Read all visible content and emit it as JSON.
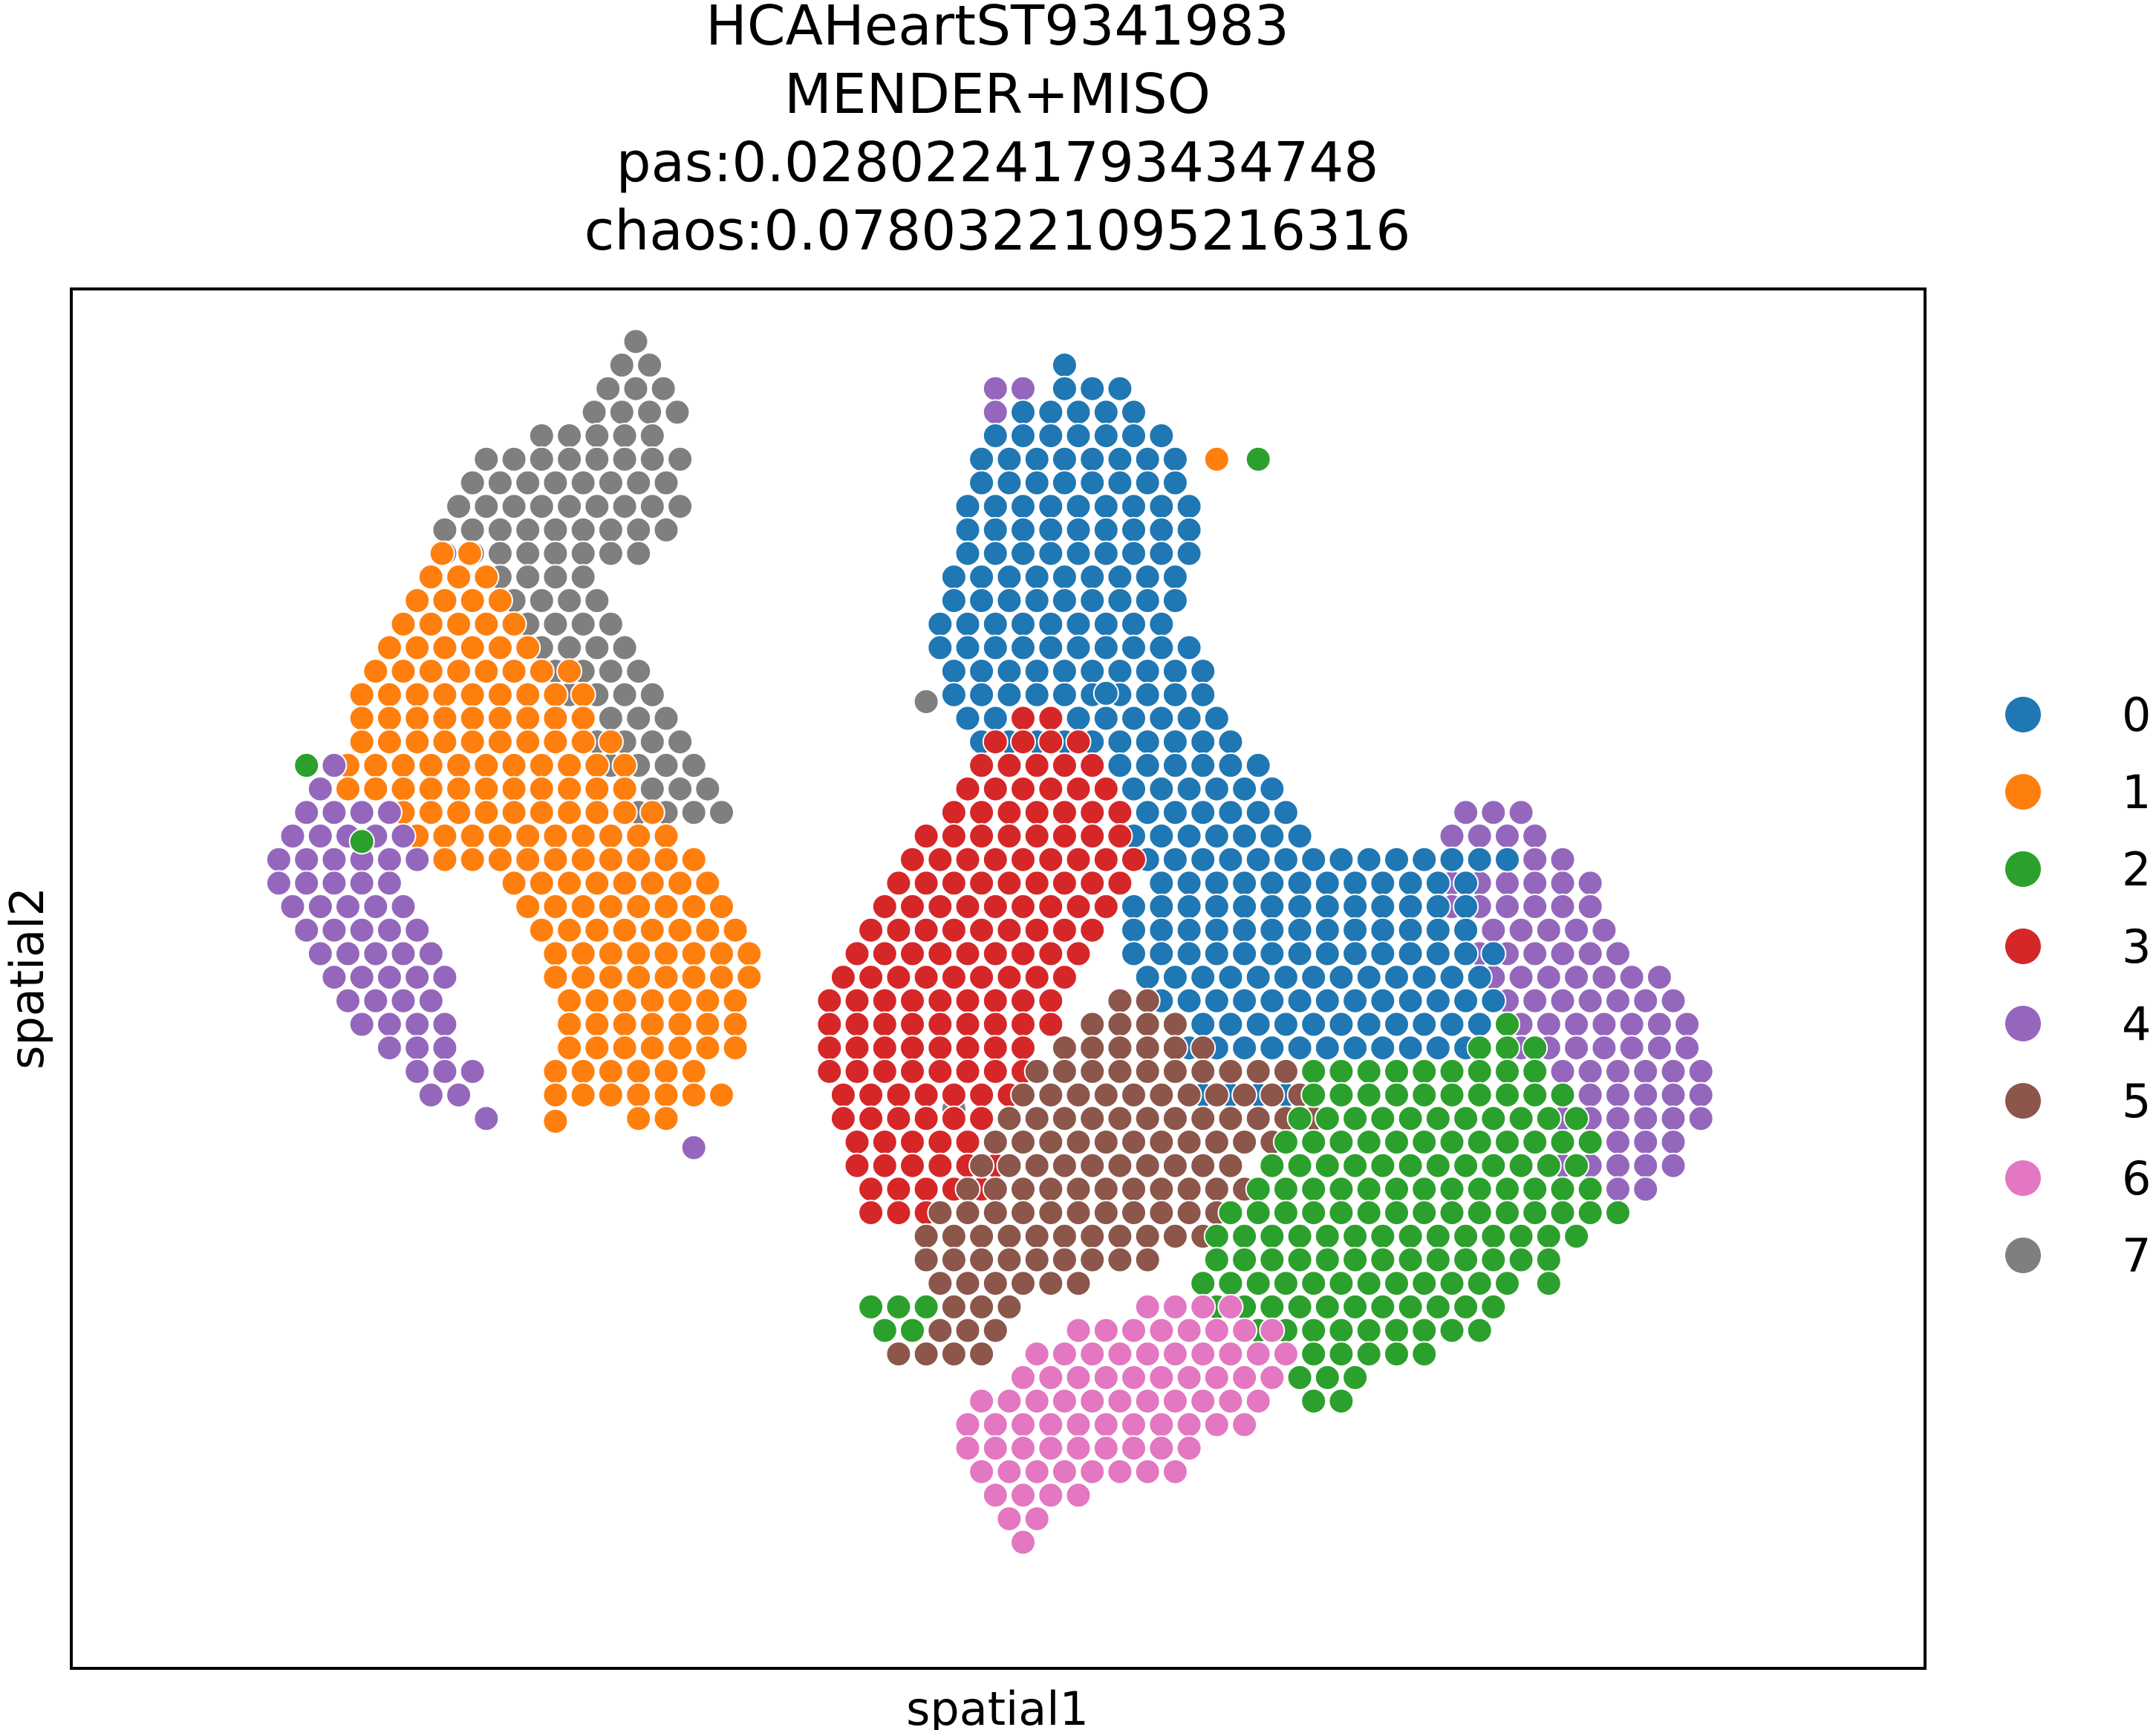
{
  "chart_data": {
    "type": "scatter",
    "title_lines": [
      "HCAHeartST9341983",
      "MENDER+MISO",
      "pas:0.02802241793434748",
      "chaos:0.07803221095216316"
    ],
    "xlabel": "spatial1",
    "ylabel": "spatial2",
    "xlim": [
      0,
      1340
    ],
    "ylim": [
      0,
      996
    ],
    "grid": false,
    "ticks": false,
    "legend_position": "right",
    "legend": [
      {
        "label": "0",
        "color": "#1f77b4"
      },
      {
        "label": "1",
        "color": "#ff7f0e"
      },
      {
        "label": "2",
        "color": "#2ca02c"
      },
      {
        "label": "3",
        "color": "#d62728"
      },
      {
        "label": "4",
        "color": "#9467bd"
      },
      {
        "label": "5",
        "color": "#8c564b"
      },
      {
        "label": "6",
        "color": "#e377c2"
      },
      {
        "label": "7",
        "color": "#7f7f7f"
      }
    ],
    "regions": [
      {
        "cluster": "7",
        "rows": [
          [
            958,
            408,
            408
          ],
          [
            941,
            398,
            418
          ],
          [
            924,
            388,
            428
          ],
          [
            907,
            378,
            438
          ],
          [
            890,
            340,
            438
          ],
          [
            873,
            300,
            448
          ],
          [
            856,
            290,
            448
          ],
          [
            839,
            280,
            448
          ],
          [
            822,
            270,
            438
          ],
          [
            805,
            270,
            428
          ],
          [
            788,
            310,
            380
          ],
          [
            771,
            320,
            380
          ],
          [
            754,
            330,
            390
          ],
          [
            737,
            340,
            400
          ],
          [
            720,
            350,
            410
          ],
          [
            703,
            360,
            420
          ],
          [
            686,
            370,
            430
          ],
          [
            669,
            380,
            440
          ],
          [
            652,
            390,
            450
          ],
          [
            635,
            400,
            460
          ],
          [
            618,
            410,
            470
          ]
        ]
      },
      {
        "cluster": "7",
        "rows": [
          [
            404,
            638,
            638
          ]
        ]
      },
      {
        "cluster": "1",
        "rows": [
          [
            805,
            268,
            298
          ],
          [
            788,
            260,
            310
          ],
          [
            771,
            250,
            320
          ],
          [
            754,
            240,
            330
          ],
          [
            737,
            230,
            340
          ],
          [
            720,
            220,
            360
          ],
          [
            703,
            210,
            370
          ],
          [
            686,
            210,
            380
          ],
          [
            669,
            210,
            390
          ],
          [
            652,
            200,
            400
          ],
          [
            635,
            200,
            410
          ],
          [
            618,
            240,
            420
          ],
          [
            601,
            250,
            440
          ],
          [
            584,
            250,
            460
          ],
          [
            567,
            320,
            470
          ],
          [
            550,
            330,
            480
          ],
          [
            533,
            340,
            490
          ],
          [
            516,
            350,
            490
          ],
          [
            499,
            350,
            490
          ],
          [
            482,
            360,
            490
          ],
          [
            465,
            360,
            490
          ],
          [
            448,
            360,
            490
          ],
          [
            431,
            350,
            460
          ],
          [
            414,
            350,
            470
          ],
          [
            397,
            410,
            440
          ]
        ]
      },
      {
        "cluster": "1",
        "rows": [
          [
            395,
            350,
            350
          ]
        ]
      },
      {
        "cluster": "4",
        "rows": [
          [
            652,
            190,
            190
          ],
          [
            635,
            180,
            190
          ],
          [
            618,
            170,
            240
          ],
          [
            601,
            160,
            250
          ],
          [
            584,
            150,
            250
          ],
          [
            567,
            150,
            240
          ],
          [
            550,
            160,
            250
          ],
          [
            533,
            170,
            250
          ],
          [
            516,
            180,
            260
          ],
          [
            499,
            190,
            270
          ],
          [
            482,
            200,
            270
          ],
          [
            465,
            210,
            280
          ],
          [
            448,
            230,
            280
          ],
          [
            431,
            250,
            290
          ],
          [
            414,
            260,
            290
          ],
          [
            397,
            300,
            300
          ]
        ]
      },
      {
        "cluster": "4",
        "rows": [
          [
            376,
            450,
            450
          ]
        ]
      },
      {
        "cluster": "4",
        "rows": [
          [
            924,
            668,
            698
          ],
          [
            907,
            668,
            678
          ]
        ]
      },
      {
        "cluster": "4",
        "rows": [
          [
            618,
            1008,
            1058
          ],
          [
            601,
            998,
            1068
          ],
          [
            584,
            998,
            1078
          ],
          [
            567,
            998,
            1098
          ],
          [
            550,
            998,
            1108
          ],
          [
            533,
            1008,
            1118
          ],
          [
            516,
            1018,
            1128
          ],
          [
            499,
            1028,
            1148
          ],
          [
            482,
            1038,
            1158
          ],
          [
            465,
            1048,
            1168
          ],
          [
            448,
            1048,
            1178
          ],
          [
            431,
            1078,
            1188
          ],
          [
            414,
            1078,
            1188
          ],
          [
            397,
            1078,
            1178
          ],
          [
            380,
            1078,
            1168
          ],
          [
            363,
            1078,
            1158
          ],
          [
            346,
            1098,
            1148
          ]
        ]
      },
      {
        "cluster": "0",
        "rows": [
          [
            941,
            718,
            718
          ],
          [
            924,
            718,
            768
          ],
          [
            907,
            688,
            778
          ],
          [
            890,
            668,
            788
          ],
          [
            873,
            658,
            798
          ],
          [
            856,
            658,
            808
          ],
          [
            839,
            648,
            818
          ],
          [
            822,
            648,
            818
          ],
          [
            805,
            648,
            818
          ],
          [
            788,
            638,
            798
          ],
          [
            771,
            638,
            798
          ],
          [
            754,
            628,
            798
          ],
          [
            737,
            628,
            808
          ],
          [
            720,
            638,
            818
          ],
          [
            703,
            638,
            828
          ],
          [
            686,
            648,
            838
          ],
          [
            669,
            658,
            838
          ],
          [
            652,
            738,
            868
          ],
          [
            635,
            748,
            868
          ],
          [
            618,
            758,
            888
          ],
          [
            601,
            768,
            898
          ],
          [
            584,
            778,
            1048
          ],
          [
            567,
            788,
            1018
          ],
          [
            550,
            768,
            1008
          ],
          [
            533,
            768,
            1018
          ],
          [
            516,
            768,
            1028
          ],
          [
            499,
            778,
            1028
          ],
          [
            482,
            788,
            1028
          ],
          [
            465,
            798,
            1018
          ],
          [
            448,
            808,
            1008
          ],
          [
            431,
            818,
            1008
          ],
          [
            414,
            818,
            888
          ]
        ]
      },
      {
        "cluster": "0",
        "rows": [
          [
            704,
            748,
            748
          ]
        ]
      },
      {
        "cluster": "1",
        "rows": [
          [
            873,
            828,
            828
          ]
        ]
      },
      {
        "cluster": "2",
        "rows": [
          [
            873,
            858,
            858
          ]
        ]
      },
      {
        "cluster": "7",
        "rows": [
          [
            698,
            618,
            618
          ]
        ]
      },
      {
        "cluster": "2",
        "rows": [
          [
            652,
            170,
            170
          ]
        ]
      },
      {
        "cluster": "2",
        "rows": [
          [
            597,
            210,
            210
          ]
        ]
      },
      {
        "cluster": "3",
        "rows": [
          [
            686,
            688,
            708
          ],
          [
            669,
            668,
            728
          ],
          [
            652,
            658,
            738
          ],
          [
            635,
            648,
            758
          ],
          [
            618,
            638,
            768
          ],
          [
            601,
            618,
            768
          ],
          [
            584,
            608,
            768
          ],
          [
            567,
            598,
            768
          ],
          [
            550,
            588,
            748
          ],
          [
            533,
            578,
            748
          ],
          [
            516,
            568,
            738
          ],
          [
            499,
            558,
            728
          ],
          [
            482,
            548,
            718
          ],
          [
            465,
            548,
            708
          ],
          [
            448,
            548,
            698
          ],
          [
            431,
            548,
            688
          ],
          [
            414,
            558,
            688
          ],
          [
            397,
            558,
            678
          ],
          [
            380,
            568,
            678
          ],
          [
            363,
            568,
            668
          ],
          [
            346,
            578,
            658
          ],
          [
            329,
            578,
            628
          ]
        ]
      },
      {
        "cluster": "5",
        "rows": [
          [
            482,
            758,
            788
          ],
          [
            465,
            738,
            808
          ],
          [
            448,
            718,
            818
          ],
          [
            431,
            698,
            888
          ],
          [
            414,
            688,
            898
          ],
          [
            397,
            678,
            898
          ],
          [
            380,
            668,
            868
          ],
          [
            363,
            658,
            848
          ],
          [
            346,
            648,
            848
          ],
          [
            329,
            628,
            838
          ],
          [
            312,
            618,
            818
          ],
          [
            295,
            618,
            788
          ],
          [
            278,
            628,
            728
          ],
          [
            261,
            618,
            688
          ],
          [
            244,
            608,
            668
          ],
          [
            227,
            598,
            658
          ]
        ]
      },
      {
        "cluster": "2",
        "rows": [
          [
            465,
            1038,
            1038
          ],
          [
            448,
            1018,
            1058
          ],
          [
            431,
            898,
            1068
          ],
          [
            414,
            898,
            1078
          ],
          [
            397,
            888,
            1088
          ],
          [
            380,
            878,
            1098
          ],
          [
            363,
            868,
            1098
          ],
          [
            346,
            858,
            1098
          ],
          [
            329,
            838,
            1088
          ],
          [
            312,
            828,
            1078
          ],
          [
            295,
            828,
            1068
          ],
          [
            278,
            818,
            1048
          ],
          [
            261,
            828,
            1038
          ],
          [
            244,
            858,
            1018
          ],
          [
            227,
            878,
            978
          ],
          [
            210,
            888,
            938
          ],
          [
            193,
            898,
            918
          ]
        ]
      },
      {
        "cluster": "2",
        "rows": [
          [
            329,
            1098,
            1118
          ],
          [
            312,
            1088,
            1098
          ]
        ]
      },
      {
        "cluster": "2",
        "rows": [
          [
            278,
            1068,
            1078
          ]
        ]
      },
      {
        "cluster": "2",
        "rows": [
          [
            261,
            578,
            618
          ],
          [
            244,
            588,
            608
          ]
        ]
      },
      {
        "cluster": "6",
        "rows": [
          [
            261,
            778,
            848
          ],
          [
            244,
            728,
            868
          ],
          [
            227,
            698,
            878
          ],
          [
            210,
            688,
            878
          ],
          [
            193,
            658,
            868
          ],
          [
            176,
            648,
            848
          ],
          [
            159,
            648,
            808
          ],
          [
            142,
            658,
            798
          ],
          [
            125,
            668,
            728
          ],
          [
            108,
            678,
            708
          ],
          [
            91,
            688,
            688
          ]
        ]
      }
    ]
  }
}
